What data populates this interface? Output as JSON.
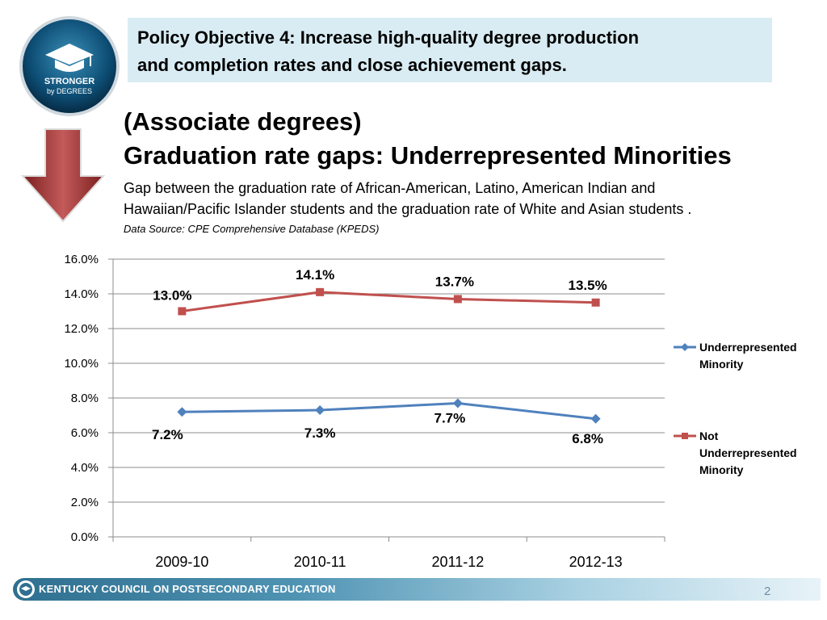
{
  "logo": {
    "line1": "STRONGER",
    "line2": "by DEGREES"
  },
  "objective": {
    "line1": "Policy Objective 4: Increase high-quality degree production",
    "line2": "and completion rates and close achievement gaps."
  },
  "headline": {
    "line1": "(Associate degrees)",
    "line2": "Graduation rate gaps:  Underrepresented Minorities"
  },
  "description": {
    "line1": "Gap between the graduation rate of African-American, Latino, American Indian and",
    "line2": "Hawaiian/Pacific Islander students and the graduation rate of White and Asian students ."
  },
  "source": "Data Source: CPE Comprehensive Database (KPEDS)",
  "chart_data": {
    "type": "line",
    "title": "",
    "xlabel": "",
    "ylabel": "",
    "categories": [
      "2009-10",
      "2010-11",
      "2011-12",
      "2012-13"
    ],
    "ylim": [
      0,
      16
    ],
    "yticks": [
      "0.0%",
      "2.0%",
      "4.0%",
      "6.0%",
      "8.0%",
      "10.0%",
      "12.0%",
      "14.0%",
      "16.0%"
    ],
    "grid": true,
    "legend_position": "right",
    "series": [
      {
        "name": "Underrepresented Minority",
        "legend_lines": [
          "Underrepresented",
          "Minority"
        ],
        "color": "#4f81bd",
        "marker": "diamond",
        "values": [
          7.2,
          7.3,
          7.7,
          6.8
        ],
        "labels": [
          "7.2%",
          "7.3%",
          "7.7%",
          "6.8%"
        ]
      },
      {
        "name": "Not Underrepresented Minority",
        "legend_lines": [
          "Not",
          "Underrepresented",
          "Minority"
        ],
        "color": "#c0504d",
        "marker": "square",
        "values": [
          13.0,
          14.1,
          13.7,
          13.5
        ],
        "labels": [
          "13.0%",
          "14.1%",
          "13.7%",
          "13.5%"
        ]
      }
    ]
  },
  "footer": {
    "org": "KENTUCKY COUNCIL ON POSTSECONDARY EDUCATION",
    "page": "2"
  }
}
